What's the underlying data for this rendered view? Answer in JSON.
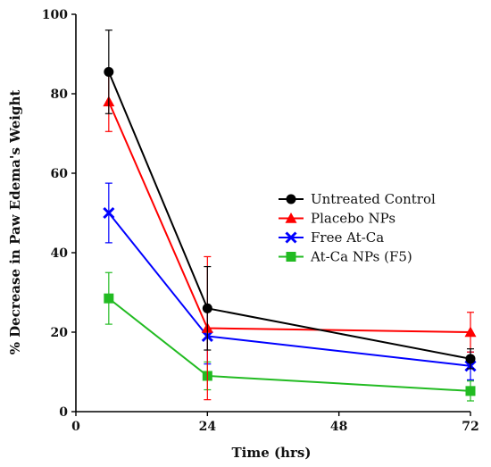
{
  "chart_data": {
    "type": "line",
    "title": "",
    "xlabel": "Time (hrs)",
    "ylabel": "% Decrease in Paw Edema's Weight",
    "xlim": [
      0,
      72
    ],
    "ylim": [
      0,
      100
    ],
    "xticks": [
      0,
      24,
      48,
      72
    ],
    "yticks": [
      0,
      20,
      40,
      60,
      80,
      100
    ],
    "grid": false,
    "legend_position": "right-center",
    "x": [
      6,
      24,
      72
    ],
    "series": [
      {
        "name": "Untreated Control",
        "color": "#000000",
        "marker": "circle",
        "values": [
          85.5,
          26,
          13.3
        ],
        "errors": [
          10.5,
          10.5,
          2.5
        ]
      },
      {
        "name": "Placebo NPs",
        "color": "#ff0000",
        "marker": "triangle",
        "values": [
          78,
          21,
          20
        ],
        "errors": [
          7.5,
          18,
          5
        ]
      },
      {
        "name": "Free At-Ca",
        "color": "#0000ff",
        "marker": "x",
        "values": [
          50,
          19,
          11.5
        ],
        "errors": [
          7.5,
          7,
          3.5
        ]
      },
      {
        "name": "At-Ca NPs (F5)",
        "color": "#22bb22",
        "marker": "square",
        "values": [
          28.5,
          9,
          5.2
        ],
        "errors": [
          6.5,
          3.5,
          2.5
        ]
      }
    ]
  }
}
